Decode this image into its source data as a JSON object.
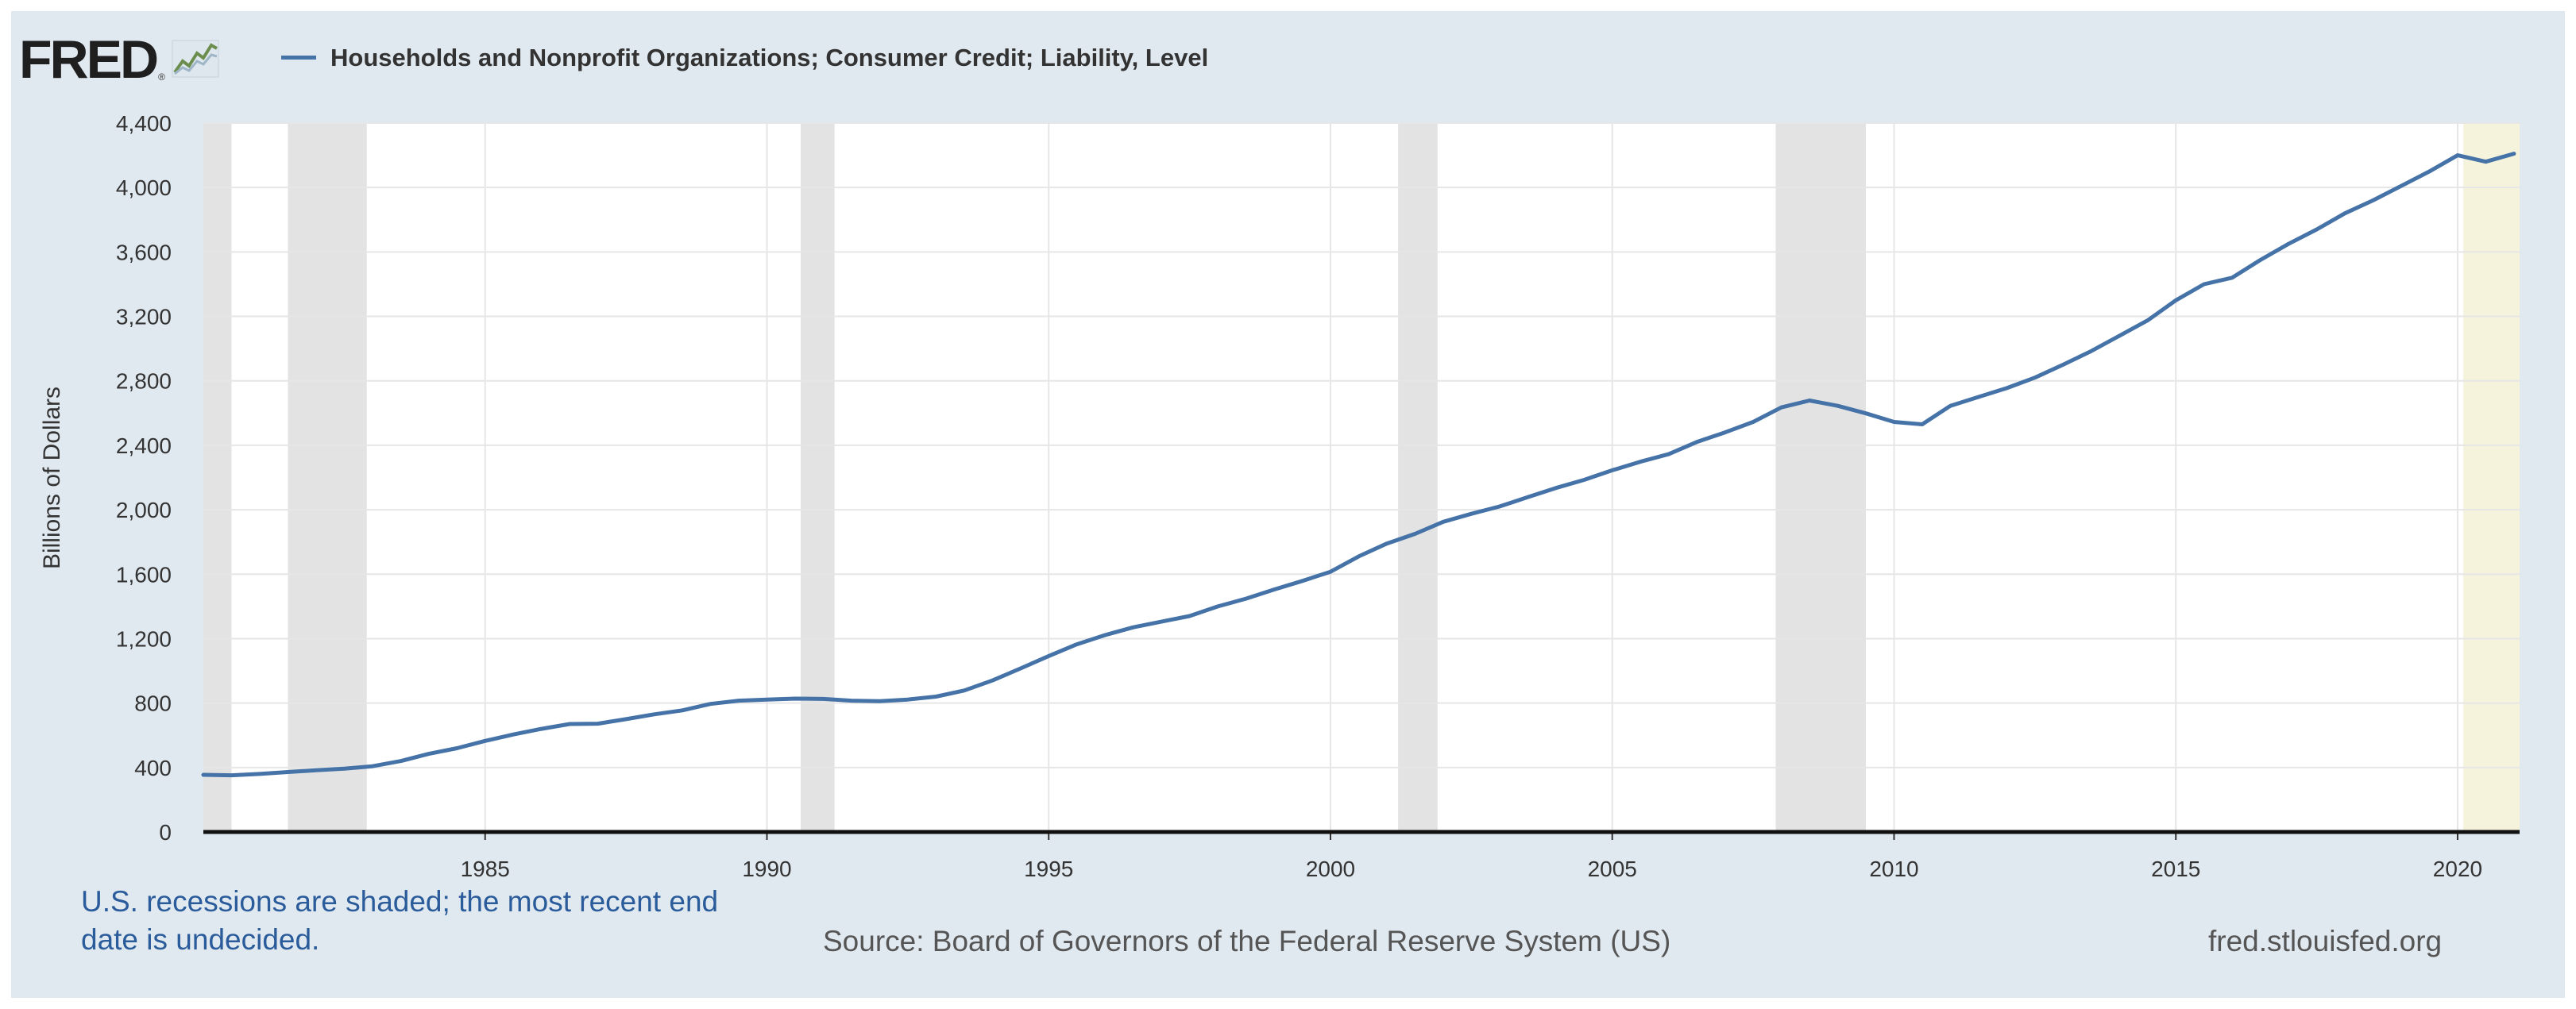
{
  "header": {
    "logo_text": "FRED",
    "logo_mark": "®",
    "logo_icon": "trend-graph-icon",
    "series_label": "Households and Nonprofit Organizations; Consumer Credit; Liability, Level"
  },
  "footer": {
    "recession_note": "U.S. recessions are shaded; the most recent end date is undecided.",
    "source": "Source: Board of Governors of the Federal Reserve System (US)",
    "url": "fred.stlouisfed.org"
  },
  "colors": {
    "series": "#4572a7",
    "recession": "#e3e3e3",
    "undecided": "#f5f3dc",
    "grid": "#e6e6e6",
    "panel": "#e1e9f0"
  },
  "chart_data": {
    "type": "line",
    "title": "Households and Nonprofit Organizations; Consumer Credit; Liability, Level",
    "xlabel": "",
    "ylabel": "Billions of Dollars",
    "xlim": [
      1980.0,
      2021.1
    ],
    "ylim": [
      0,
      4400
    ],
    "yticks": [
      0,
      400,
      800,
      1200,
      1600,
      2000,
      2400,
      2800,
      3200,
      3600,
      4000,
      4400
    ],
    "ytick_labels": [
      "0",
      "400",
      "800",
      "1,200",
      "1,600",
      "2,000",
      "2,400",
      "2,800",
      "3,200",
      "3,600",
      "4,000",
      "4,400"
    ],
    "xticks": [
      1985,
      1990,
      1995,
      2000,
      2005,
      2010,
      2015,
      2020
    ],
    "xtick_labels": [
      "1985",
      "1990",
      "1995",
      "2000",
      "2005",
      "2010",
      "2015",
      "2020"
    ],
    "grid": true,
    "recessions": [
      {
        "start": 1980.0,
        "end": 1980.5
      },
      {
        "start": 1981.5,
        "end": 1982.9
      },
      {
        "start": 1990.6,
        "end": 1991.2
      },
      {
        "start": 2001.2,
        "end": 2001.9
      },
      {
        "start": 2007.9,
        "end": 2009.5
      }
    ],
    "undecided_recession": {
      "start": 2020.1,
      "end": 2021.1
    },
    "series": [
      {
        "name": "Households and Nonprofit Organizations; Consumer Credit; Liability, Level",
        "x": [
          1980.0,
          1980.5,
          1981.0,
          1981.5,
          1982.0,
          1982.5,
          1983.0,
          1983.5,
          1984.0,
          1984.5,
          1985.0,
          1985.5,
          1986.0,
          1986.5,
          1987.0,
          1987.5,
          1988.0,
          1988.5,
          1989.0,
          1989.5,
          1990.0,
          1990.5,
          1991.0,
          1991.5,
          1992.0,
          1992.5,
          1993.0,
          1993.5,
          1994.0,
          1994.5,
          1995.0,
          1995.5,
          1996.0,
          1996.5,
          1997.0,
          1997.5,
          1998.0,
          1998.5,
          1999.0,
          1999.5,
          2000.0,
          2000.5,
          2001.0,
          2001.5,
          2002.0,
          2002.5,
          2003.0,
          2003.5,
          2004.0,
          2004.5,
          2005.0,
          2005.5,
          2006.0,
          2006.5,
          2007.0,
          2007.5,
          2008.0,
          2008.5,
          2009.0,
          2009.5,
          2010.0,
          2010.5,
          2011.0,
          2011.5,
          2012.0,
          2012.5,
          2013.0,
          2013.5,
          2014.0,
          2014.5,
          2015.0,
          2015.5,
          2016.0,
          2016.5,
          2017.0,
          2017.5,
          2018.0,
          2018.5,
          2019.0,
          2019.5,
          2020.0,
          2020.5,
          2021.0
        ],
        "values": [
          355,
          352,
          360,
          372,
          383,
          393,
          408,
          440,
          485,
          520,
          565,
          605,
          640,
          670,
          672,
          700,
          730,
          755,
          795,
          815,
          822,
          828,
          826,
          815,
          812,
          822,
          840,
          878,
          940,
          1015,
          1092,
          1165,
          1222,
          1270,
          1305,
          1340,
          1400,
          1448,
          1505,
          1558,
          1615,
          1710,
          1790,
          1850,
          1925,
          1975,
          2020,
          2078,
          2135,
          2185,
          2245,
          2298,
          2345,
          2420,
          2480,
          2545,
          2635,
          2678,
          2645,
          2598,
          2545,
          2530,
          2645,
          2700,
          2755,
          2820,
          2900,
          2985,
          3080,
          3175,
          3300,
          3400,
          3440,
          3550,
          3650,
          3740,
          3840,
          3920,
          4010,
          4100,
          4200,
          4160,
          4210
        ]
      }
    ]
  }
}
